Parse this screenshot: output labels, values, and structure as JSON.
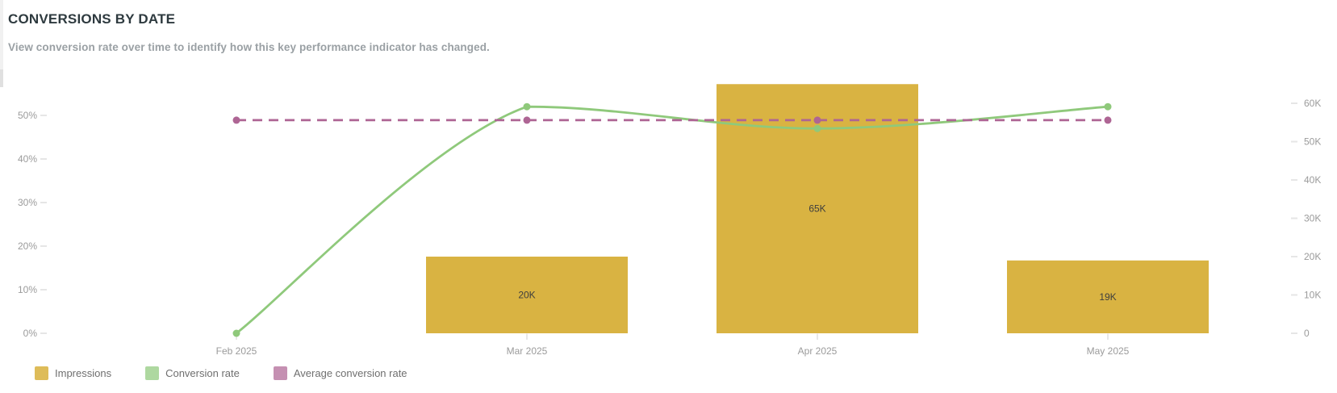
{
  "header": {
    "title": "CONVERSIONS BY DATE",
    "subtitle": "View conversion rate over time to identify how this key performance indicator has changed."
  },
  "colors": {
    "impressions": "#d9b342",
    "conversion_rate": "#8fc97b",
    "average_conversion_rate": "#ae6594",
    "axis_label": "#9b9b9b",
    "bar_label": "#3e3e3e",
    "axis_tick": "#e6e6e6",
    "x_tick": "#e0e0e0"
  },
  "chart_data": {
    "type": "combo",
    "title": "CONVERSIONS BY DATE",
    "categories": [
      "Feb 2025",
      "Mar 2025",
      "Apr 2025",
      "May 2025"
    ],
    "series": [
      {
        "name": "Impressions",
        "type": "bar",
        "axis": "right",
        "values": [
          0,
          20000,
          65000,
          19000
        ],
        "data_labels": [
          "",
          "20K",
          "65K",
          "19K"
        ],
        "color": "#d9b342"
      },
      {
        "name": "Conversion rate",
        "type": "line",
        "style": "solid",
        "axis": "left",
        "unit": "%",
        "values": [
          0,
          52,
          47,
          52
        ],
        "color": "#8fc97b"
      },
      {
        "name": "Average conversion rate",
        "type": "line",
        "style": "dashed",
        "axis": "left",
        "unit": "%",
        "values": [
          48.9,
          48.9,
          48.9,
          48.9
        ],
        "color": "#ae6594"
      }
    ],
    "left_axis": {
      "unit": "%",
      "tick_values": [
        0,
        10,
        20,
        30,
        40,
        50
      ],
      "tick_labels": [
        "0%",
        "10%",
        "20%",
        "30%",
        "40%",
        "50%"
      ],
      "range": [
        0,
        50
      ]
    },
    "right_axis": {
      "tick_values": [
        0,
        10000,
        20000,
        30000,
        40000,
        50000,
        60000
      ],
      "tick_labels": [
        "0",
        "10K",
        "20K",
        "30K",
        "40K",
        "50K",
        "60K"
      ],
      "range": [
        0,
        60000
      ]
    },
    "grid": false,
    "legend_position": "bottom-left",
    "legend": [
      "Impressions",
      "Conversion rate",
      "Average conversion rate"
    ]
  }
}
